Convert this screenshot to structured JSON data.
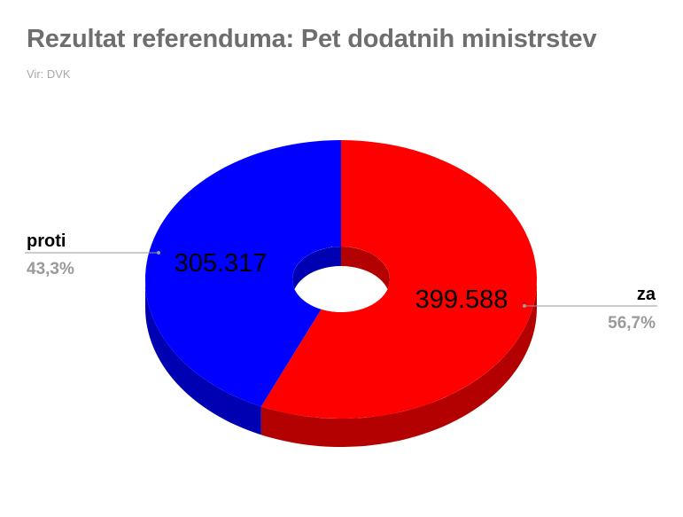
{
  "title": "Rezultat referenduma: Pet dodatnih ministrstev",
  "source": "Vir: DVK",
  "chart_data": {
    "type": "pie",
    "style": "3d-donut",
    "slices": [
      {
        "name": "za",
        "value": 399588,
        "value_label": "399.588",
        "percent_label": "56,7%",
        "color": "#ff0000",
        "side_color": "#b30000"
      },
      {
        "name": "proti",
        "value": 305317,
        "value_label": "305.317",
        "percent_label": "43,3%",
        "color": "#0000ff",
        "side_color": "#0000b3"
      }
    ]
  }
}
